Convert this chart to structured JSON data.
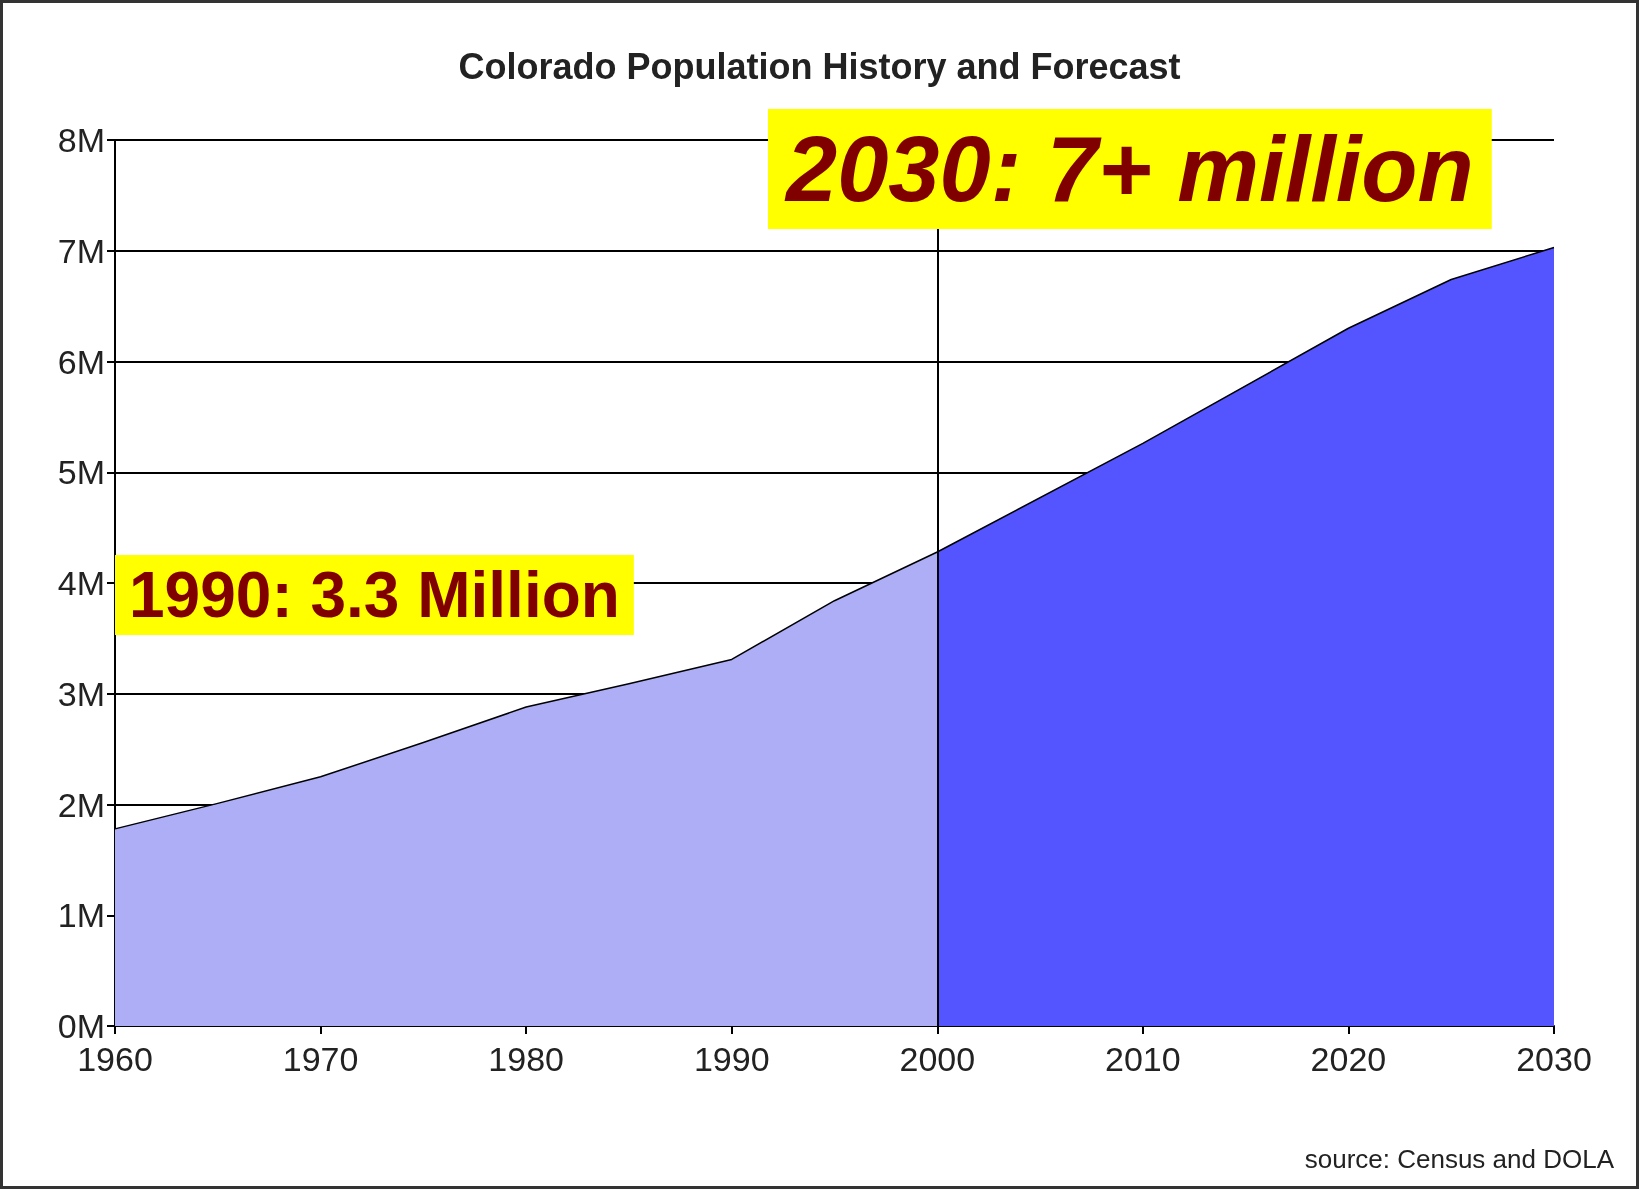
{
  "chart_data": {
    "type": "area",
    "title": "Colorado Population History and Forecast",
    "series": [
      {
        "color": "#aeaef7",
        "x": [
          1960,
          1965,
          1970,
          1975,
          1980,
          1985,
          1990,
          1995,
          2000
        ],
        "values": [
          1.78,
          2.01,
          2.25,
          2.56,
          2.88,
          3.09,
          3.31,
          3.84,
          4.28
        ]
      },
      {
        "color": "#5555ff",
        "x": [
          2000,
          2010,
          2020,
          2025,
          2030
        ],
        "values": [
          4.28,
          5.26,
          6.3,
          6.74,
          7.03
        ]
      }
    ],
    "xlim": [
      1960,
      2030
    ],
    "xticks": [
      1960,
      1970,
      1980,
      1990,
      2000,
      2010,
      2020,
      2030
    ],
    "ylim": [
      0,
      8
    ],
    "yticks": [
      {
        "value": 0,
        "label": "0M"
      },
      {
        "value": 1,
        "label": "1M"
      },
      {
        "value": 2,
        "label": "2M"
      },
      {
        "value": 3,
        "label": "3M"
      },
      {
        "value": 4,
        "label": "4M"
      },
      {
        "value": 5,
        "label": "5M"
      },
      {
        "value": 6,
        "label": "6M"
      },
      {
        "value": 7,
        "label": "7M"
      },
      {
        "value": 8,
        "label": "8M"
      }
    ],
    "grid": "y",
    "ref_lines": [
      {
        "axis": "x",
        "value": 2000
      }
    ],
    "annotations": [
      "1990: 3.3 Million",
      "2030: 7+ million",
      "source: Census and DOLA"
    ]
  }
}
